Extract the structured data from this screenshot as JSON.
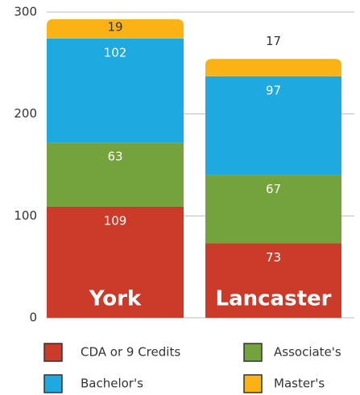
{
  "chart_data": {
    "type": "stacked_bar",
    "categories": [
      "York",
      "Lancaster"
    ],
    "series": [
      {
        "name": "CDA or 9 Credits",
        "color": "#cc3a2a",
        "values": [
          109,
          73
        ]
      },
      {
        "name": "Associate's",
        "color": "#74a23c",
        "values": [
          63,
          67
        ]
      },
      {
        "name": "Bachelor's",
        "color": "#1ea9e1",
        "values": [
          102,
          97
        ]
      },
      {
        "name": "Master's",
        "color": "#fbb215",
        "values": [
          19,
          17
        ]
      }
    ],
    "ylim": [
      0,
      300
    ],
    "yticks": [
      0,
      100,
      200,
      300
    ],
    "grid": true
  }
}
